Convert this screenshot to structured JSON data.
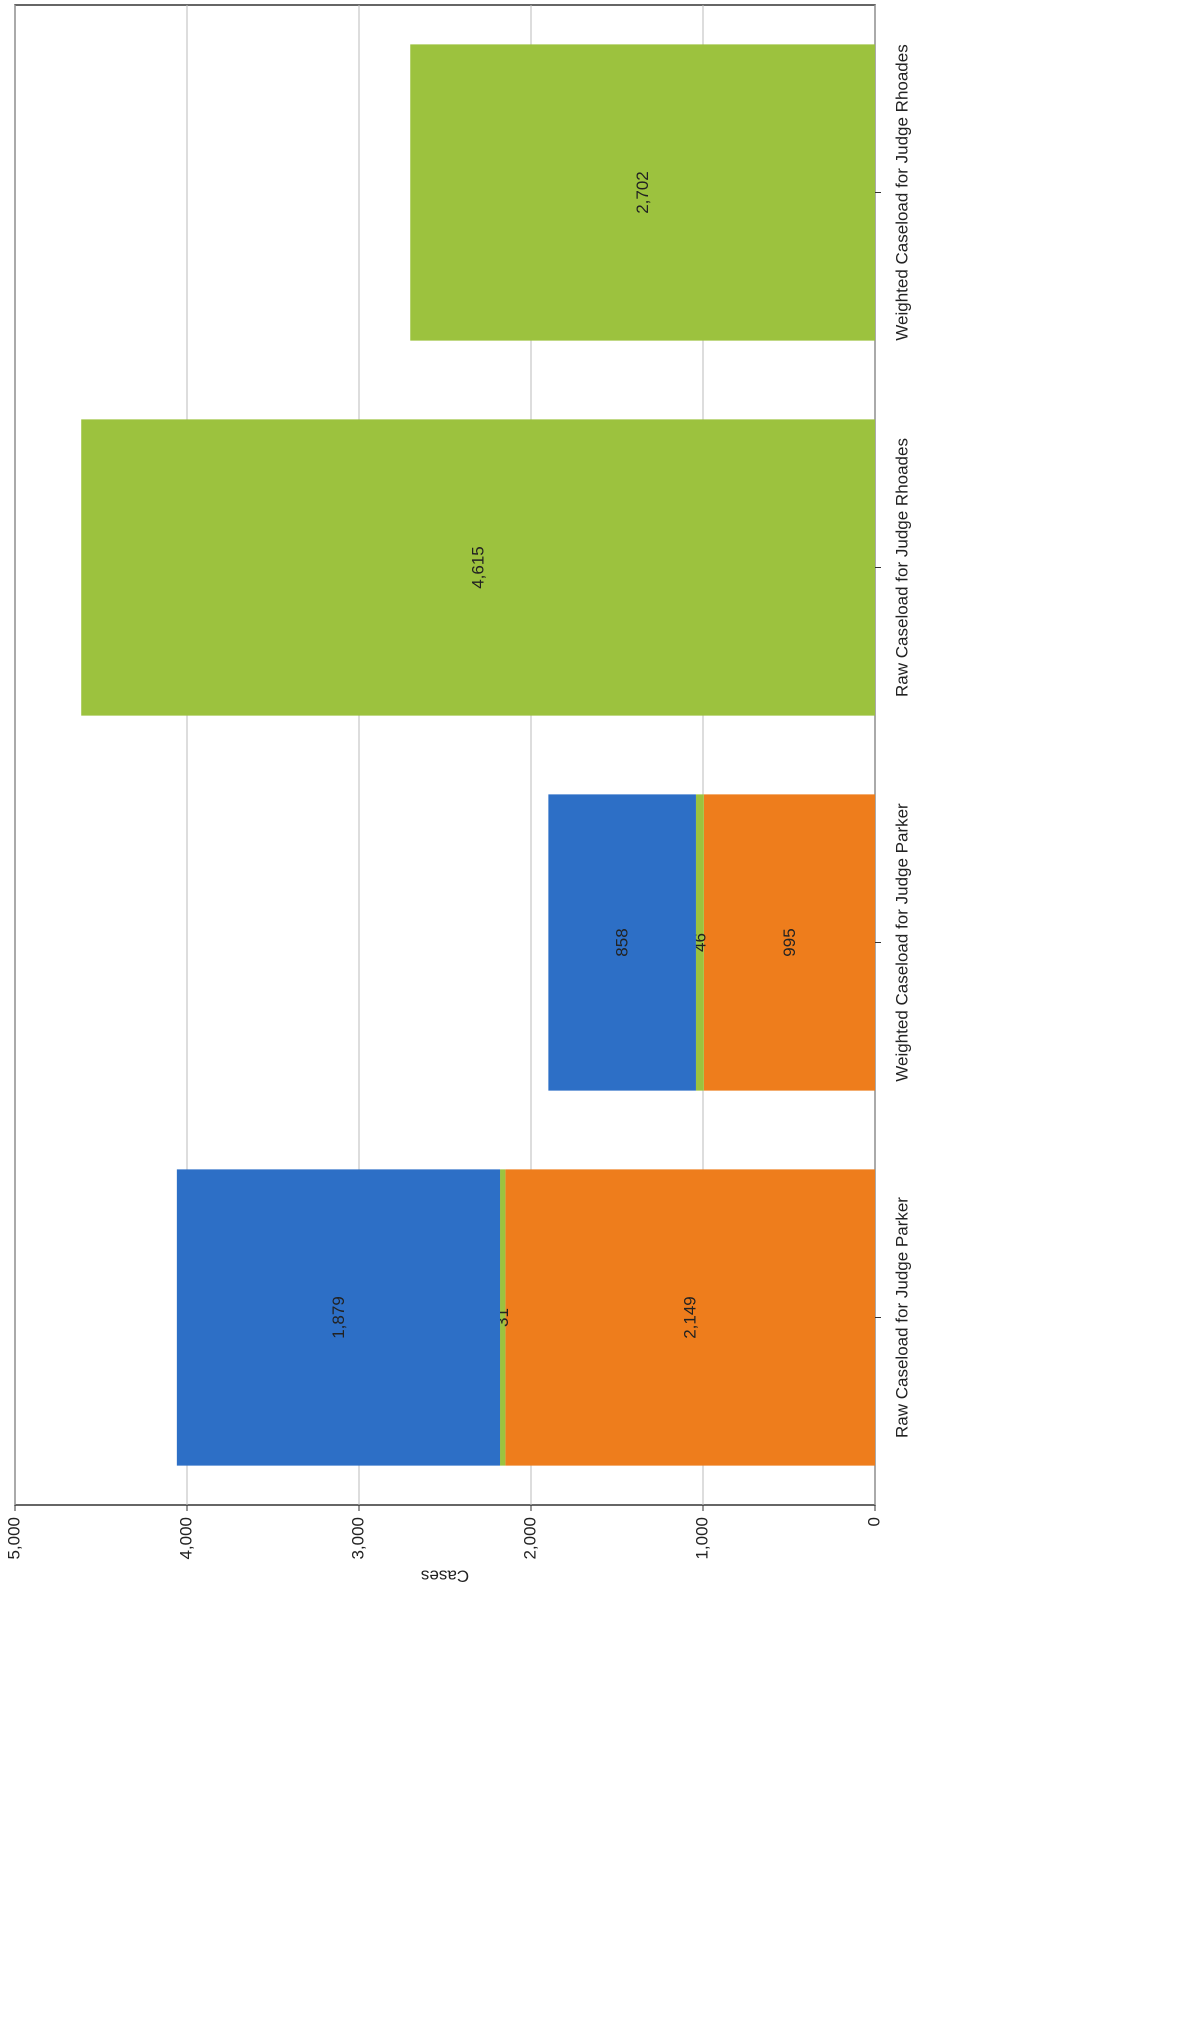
{
  "chart_data": {
    "type": "stacked-bar",
    "y_label": "Cases",
    "categories": [
      "Raw Caseload for Judge Parker",
      "Weighted Caseload for Judge Parker",
      "Raw Caseload for Judge Rhoades",
      "Weighted Caseload for Judge Rhoades"
    ],
    "series": [
      {
        "color": "#ee7d1c",
        "values": [
          2149,
          995,
          null,
          null
        ],
        "value_labels": [
          "2,149",
          "995",
          null,
          null
        ]
      },
      {
        "color": "#9cc23e",
        "values": [
          31,
          46,
          4615,
          2702
        ],
        "value_labels": [
          "31",
          "46",
          "4,615",
          "2,702"
        ]
      },
      {
        "color": "#2d6fc6",
        "values": [
          1879,
          858,
          null,
          null
        ],
        "value_labels": [
          "1,879",
          "858",
          null,
          null
        ]
      }
    ],
    "ylim": [
      0,
      5000
    ],
    "yticks": [
      0,
      {
        "value": 1000,
        "label": "1,000"
      },
      {
        "value": 2000,
        "label": "2,000"
      },
      {
        "value": 3000,
        "label": "3,000"
      },
      {
        "value": 4000,
        "label": "4,000"
      },
      {
        "value": 5000,
        "label": "5,000"
      }
    ],
    "grid": true
  }
}
